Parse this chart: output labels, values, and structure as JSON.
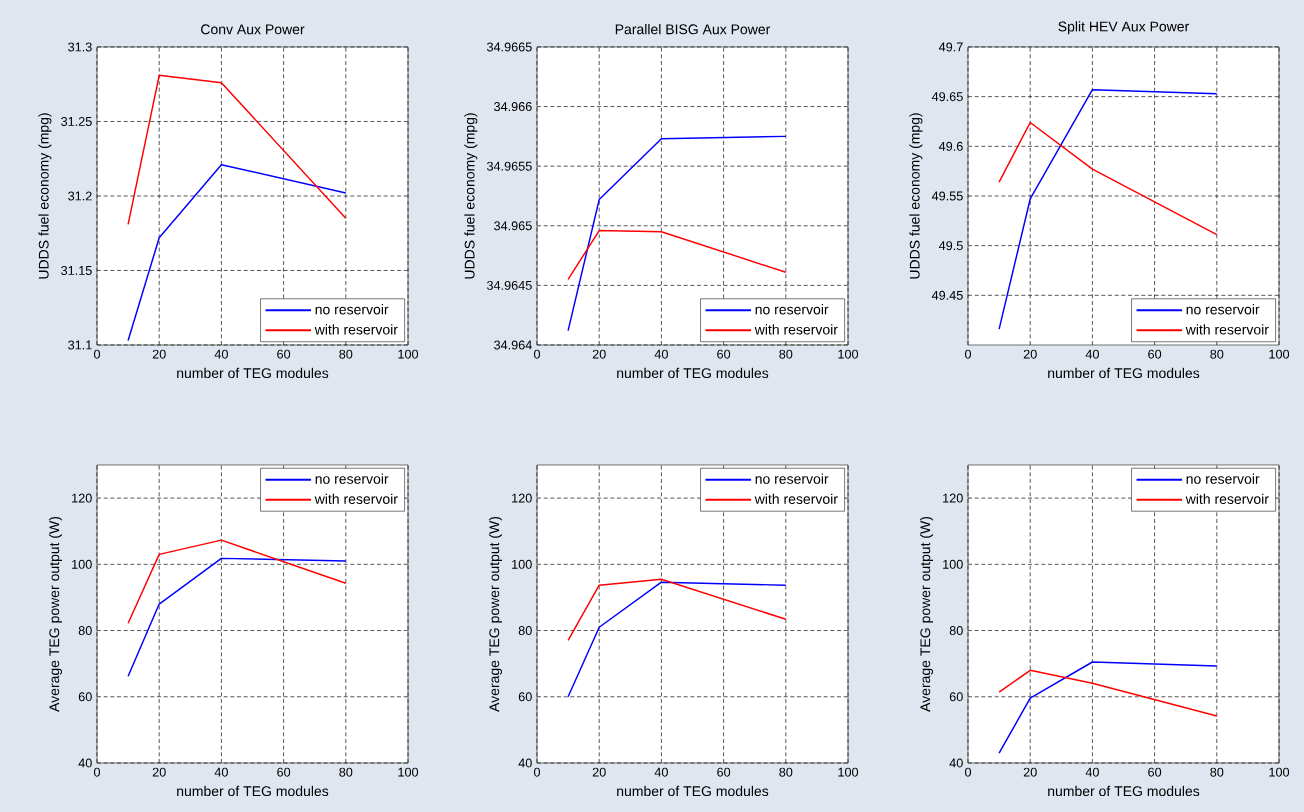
{
  "chart_data": [
    {
      "type": "line",
      "title": "Conv Aux Power",
      "xlabel": "number of TEG modules",
      "ylabel": "UDDS fuel economy (mpg)",
      "x": [
        10,
        20,
        40,
        80
      ],
      "xlim": [
        0,
        100
      ],
      "xticks": [
        0,
        20,
        40,
        60,
        80,
        100
      ],
      "ylim": [
        31.1,
        31.3
      ],
      "yticks": [
        31.1,
        31.15,
        31.2,
        31.25,
        31.3
      ],
      "grid": true,
      "legend": "bottom right",
      "series": [
        {
          "name": "no reservoir",
          "color": "#0000ff",
          "values": [
            31.103,
            31.172,
            31.221,
            31.202
          ]
        },
        {
          "name": "with reservoir",
          "color": "#ff0000",
          "values": [
            31.181,
            31.281,
            31.276,
            31.185
          ]
        }
      ]
    },
    {
      "type": "line",
      "title": "Parallel BISG Aux Power",
      "xlabel": "number of TEG modules",
      "ylabel": "UDDS fuel economy (mpg)",
      "x": [
        10,
        20,
        40,
        80
      ],
      "xlim": [
        0,
        100
      ],
      "xticks": [
        0,
        20,
        40,
        60,
        80,
        100
      ],
      "ylim": [
        34.964,
        34.9665
      ],
      "yticks": [
        34.964,
        34.9645,
        34.965,
        34.9655,
        34.966,
        34.9665
      ],
      "grid": true,
      "legend": "bottom right",
      "series": [
        {
          "name": "no reservoir",
          "color": "#0000ff",
          "values": [
            34.96412,
            34.96522,
            34.96573,
            34.96575
          ]
        },
        {
          "name": "with reservoir",
          "color": "#ff0000",
          "values": [
            34.96455,
            34.96496,
            34.96495,
            34.96461
          ]
        }
      ]
    },
    {
      "type": "line",
      "title": "Split HEV Aux Power",
      "xlabel": "number of TEG modules",
      "ylabel": "UDDS fuel economy (mpg)",
      "x": [
        10,
        20,
        40,
        80
      ],
      "xlim": [
        0,
        100
      ],
      "xticks": [
        0,
        20,
        40,
        60,
        80,
        100
      ],
      "ylim": [
        49.4,
        49.7
      ],
      "yticks": [
        49.45,
        49.5,
        49.55,
        49.6,
        49.65,
        49.7
      ],
      "grid": true,
      "legend": "bottom right",
      "series": [
        {
          "name": "no reservoir",
          "color": "#0000ff",
          "values": [
            49.416,
            49.547,
            49.657,
            49.653
          ]
        },
        {
          "name": "with reservoir",
          "color": "#ff0000",
          "values": [
            49.564,
            49.624,
            49.577,
            49.511
          ]
        }
      ]
    },
    {
      "type": "line",
      "xlabel": "number of TEG modules",
      "ylabel": "Average TEG power output (W)",
      "x": [
        10,
        20,
        40,
        80
      ],
      "xlim": [
        0,
        100
      ],
      "xticks": [
        0,
        20,
        40,
        60,
        80,
        100
      ],
      "ylim": [
        40,
        130
      ],
      "yticks": [
        40,
        60,
        80,
        100,
        120
      ],
      "grid": true,
      "legend": "top right",
      "series": [
        {
          "name": "no reservoir",
          "color": "#0000ff",
          "values": [
            66.2,
            88,
            101.8,
            101
          ]
        },
        {
          "name": "with reservoir",
          "color": "#ff0000",
          "values": [
            82.2,
            103,
            107.3,
            94.3
          ]
        }
      ]
    },
    {
      "type": "line",
      "xlabel": "number of TEG modules",
      "ylabel": "Average TEG power output (W)",
      "x": [
        10,
        20,
        40,
        80
      ],
      "xlim": [
        0,
        100
      ],
      "xticks": [
        0,
        20,
        40,
        60,
        80,
        100
      ],
      "ylim": [
        40,
        130
      ],
      "yticks": [
        40,
        60,
        80,
        100,
        120
      ],
      "grid": true,
      "legend": "top right",
      "series": [
        {
          "name": "no reservoir",
          "color": "#0000ff",
          "values": [
            60,
            81,
            94.6,
            93.7
          ]
        },
        {
          "name": "with reservoir",
          "color": "#ff0000",
          "values": [
            77,
            93.7,
            95.5,
            83.4
          ]
        }
      ]
    },
    {
      "type": "line",
      "xlabel": "number of TEG modules",
      "ylabel": "Average TEG power output (W)",
      "x": [
        10,
        20,
        40,
        80
      ],
      "xlim": [
        0,
        100
      ],
      "xticks": [
        0,
        20,
        40,
        60,
        80,
        100
      ],
      "ylim": [
        40,
        130
      ],
      "yticks": [
        40,
        60,
        80,
        100,
        120
      ],
      "grid": true,
      "legend": "top right",
      "series": [
        {
          "name": "no reservoir",
          "color": "#0000ff",
          "values": [
            43,
            59.6,
            70.5,
            69.3
          ]
        },
        {
          "name": "with reservoir",
          "color": "#ff0000",
          "values": [
            61.4,
            68,
            64.1,
            54.2
          ]
        }
      ]
    }
  ]
}
